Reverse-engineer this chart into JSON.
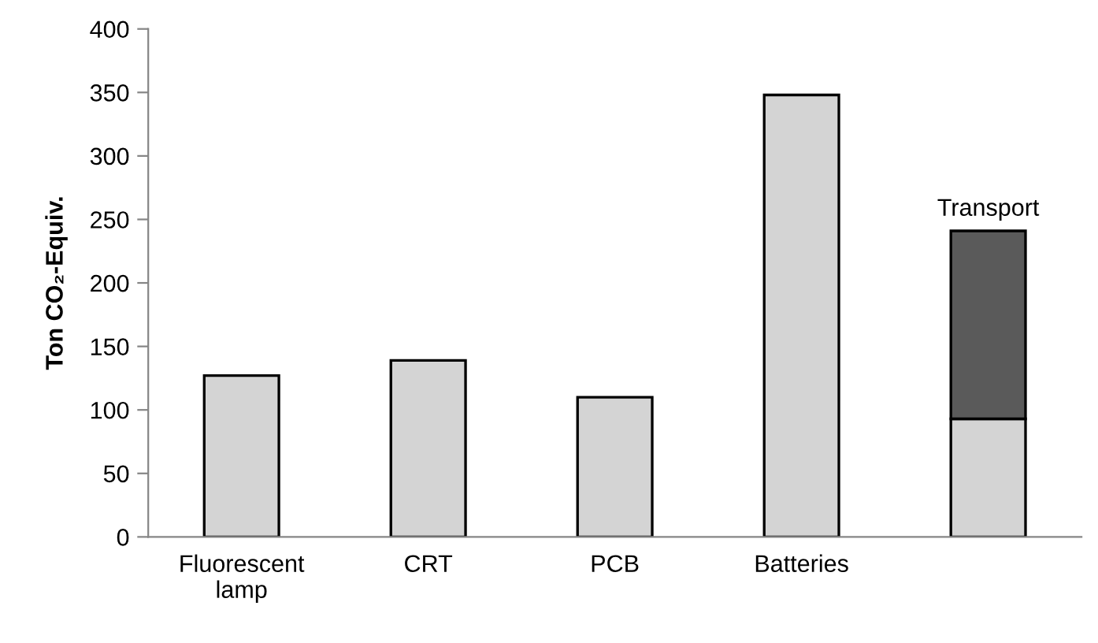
{
  "chart_data": {
    "type": "bar",
    "stacked": true,
    "ylabel": "Ton CO₂-Equiv.",
    "categories": [
      "Fluorescent lamp",
      "CRT",
      "PCB",
      "Batteries",
      null
    ],
    "series": [
      {
        "color": "#d4d4d4",
        "values": [
          127,
          139,
          110,
          348,
          93
        ]
      },
      {
        "name": "Transport",
        "color": "#5a5a5a",
        "values": [
          null,
          null,
          null,
          null,
          148
        ]
      }
    ],
    "ylim": [
      0,
      400
    ],
    "yticks": [
      0,
      50,
      100,
      150,
      200,
      250,
      300,
      350,
      400
    ],
    "grid": false,
    "legend": false
  }
}
